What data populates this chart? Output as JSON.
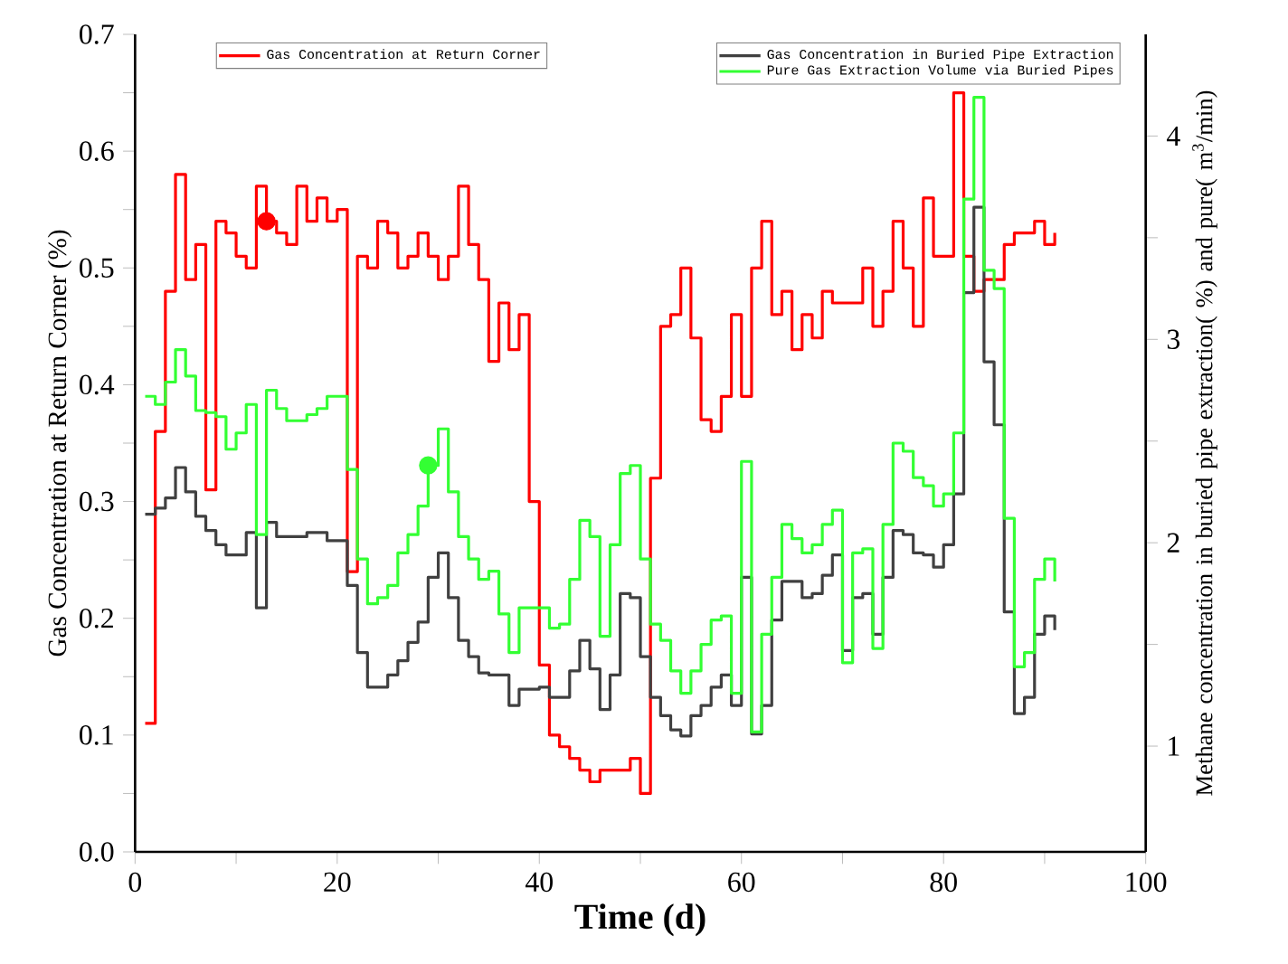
{
  "chart_data": {
    "type": "step",
    "xlabel": "Time (d)",
    "ylabel": "Gas Concentration at Return Corner (%)",
    "y2label": "Methane concentration in buried pipe extraction( %) and pure( m$^{3}$/min)",
    "x": [
      1,
      2,
      3,
      4,
      5,
      6,
      7,
      8,
      9,
      10,
      11,
      12,
      13,
      14,
      15,
      16,
      17,
      18,
      19,
      20,
      21,
      22,
      23,
      24,
      25,
      26,
      27,
      28,
      29,
      30,
      31,
      32,
      33,
      34,
      35,
      36,
      37,
      38,
      39,
      40,
      41,
      42,
      43,
      44,
      45,
      46,
      47,
      48,
      49,
      50,
      51,
      52,
      53,
      54,
      55,
      56,
      57,
      58,
      59,
      60,
      61,
      62,
      63,
      64,
      65,
      66,
      67,
      68,
      69,
      70,
      71,
      72,
      73,
      74,
      75,
      76,
      77,
      78,
      79,
      80,
      81,
      82,
      83,
      84,
      85,
      86,
      87,
      88,
      89,
      90,
      91
    ],
    "xlim": [
      0,
      100
    ],
    "xticks": [
      0,
      {
        "value": 10,
        "label": null
      },
      20,
      {
        "value": 30,
        "label": null
      },
      40,
      {
        "value": 50,
        "label": null
      },
      60,
      {
        "value": 70,
        "label": null
      },
      80,
      {
        "value": 90,
        "label": null
      },
      100
    ],
    "ylim": [
      0,
      0.7
    ],
    "yticks": [
      {
        "value": 0,
        "label": "0.0"
      },
      {
        "value": 0.05,
        "label": null
      },
      {
        "value": 0.1,
        "label": "0.1"
      },
      {
        "value": 0.15,
        "label": null
      },
      {
        "value": 0.2,
        "label": "0.2"
      },
      {
        "value": 0.25,
        "label": null
      },
      {
        "value": 0.3,
        "label": "0.3"
      },
      {
        "value": 0.35,
        "label": null
      },
      {
        "value": 0.4,
        "label": "0.4"
      },
      {
        "value": 0.45,
        "label": null
      },
      {
        "value": 0.5,
        "label": "0.5"
      },
      {
        "value": 0.55,
        "label": null
      },
      {
        "value": 0.6,
        "label": "0.6"
      },
      {
        "value": 0.65,
        "label": null
      },
      {
        "value": 0.7,
        "label": "0.7"
      }
    ],
    "y2lim": [
      0.48,
      4.5
    ],
    "y2ticks": [
      1,
      {
        "value": 1.5,
        "label": null
      },
      2,
      {
        "value": 2.5,
        "label": null
      },
      3,
      {
        "value": 3.5,
        "label": null
      },
      4
    ],
    "legend": "top",
    "series": [
      {
        "name": "Gas Concentration at Return Corner",
        "color": "#ff0000",
        "values": [
          0.11,
          0.36,
          0.48,
          0.58,
          0.49,
          0.52,
          0.31,
          0.54,
          0.53,
          0.51,
          0.5,
          0.57,
          0.54,
          0.53,
          0.52,
          0.57,
          0.54,
          0.56,
          0.54,
          0.55,
          0.24,
          0.51,
          0.5,
          0.54,
          0.53,
          0.5,
          0.51,
          0.53,
          0.51,
          0.49,
          0.51,
          0.57,
          0.52,
          0.49,
          0.42,
          0.47,
          0.43,
          0.46,
          0.3,
          0.16,
          0.1,
          0.09,
          0.08,
          0.07,
          0.06,
          0.07,
          0.07,
          0.07,
          0.08,
          0.05,
          0.32,
          0.45,
          0.46,
          0.5,
          0.44,
          0.37,
          0.36,
          0.39,
          0.46,
          0.39,
          0.5,
          0.54,
          0.46,
          0.48,
          0.43,
          0.46,
          0.44,
          0.48,
          0.47,
          0.47,
          0.47,
          0.5,
          0.45,
          0.48,
          0.54,
          0.5,
          0.45,
          0.56,
          0.51,
          0.51,
          0.65,
          0.51,
          0.48,
          0.49,
          0.49,
          0.52,
          0.53,
          0.53,
          0.54,
          0.52,
          0.53
        ]
      },
      {
        "name": "Gas Concentration in Buried Pipe Extraction",
        "color": "#404040",
        "axis": "y2",
        "values": [
          2.14,
          2.17,
          2.22,
          2.37,
          2.25,
          2.13,
          2.06,
          1.99,
          1.94,
          1.94,
          2.05,
          1.68,
          2.1,
          2.03,
          2.03,
          2.03,
          2.05,
          2.05,
          2.01,
          2.01,
          1.79,
          1.46,
          1.29,
          1.29,
          1.35,
          1.42,
          1.51,
          1.61,
          1.83,
          1.95,
          1.73,
          1.52,
          1.44,
          1.36,
          1.35,
          1.35,
          1.2,
          1.28,
          1.28,
          1.29,
          1.24,
          1.24,
          1.37,
          1.52,
          1.38,
          1.18,
          1.35,
          1.75,
          1.73,
          1.44,
          1.24,
          1.15,
          1.08,
          1.05,
          1.15,
          1.2,
          1.29,
          1.35,
          1.2,
          1.83,
          1.06,
          1.2,
          1.62,
          1.81,
          1.81,
          1.73,
          1.75,
          1.84,
          1.94,
          1.47,
          1.73,
          1.75,
          1.55,
          1.83,
          2.06,
          2.04,
          1.95,
          1.94,
          1.88,
          1.99,
          2.24,
          3.23,
          3.65,
          2.89,
          2.58,
          1.66,
          1.16,
          1.24,
          1.55,
          1.64,
          1.57
        ]
      },
      {
        "name": "Pure Gas Extraction Volume via Buried Pipes",
        "color": "#33ff33",
        "axis": "y2",
        "values": [
          2.72,
          2.68,
          2.79,
          2.95,
          2.82,
          2.65,
          2.64,
          2.62,
          2.46,
          2.54,
          2.68,
          2.04,
          2.75,
          2.66,
          2.6,
          2.6,
          2.63,
          2.66,
          2.72,
          2.72,
          2.36,
          1.92,
          1.7,
          1.73,
          1.79,
          1.95,
          2.04,
          2.18,
          2.38,
          2.56,
          2.25,
          2.03,
          1.92,
          1.82,
          1.86,
          1.65,
          1.46,
          1.68,
          1.68,
          1.68,
          1.58,
          1.6,
          1.82,
          2.11,
          2.03,
          1.54,
          1.99,
          2.34,
          2.38,
          1.92,
          1.6,
          1.52,
          1.37,
          1.26,
          1.37,
          1.5,
          1.62,
          1.64,
          1.26,
          2.4,
          1.07,
          1.55,
          1.83,
          2.09,
          2.02,
          1.95,
          1.99,
          2.09,
          2.16,
          1.41,
          1.95,
          1.97,
          1.48,
          2.09,
          2.49,
          2.45,
          2.32,
          2.28,
          2.18,
          2.24,
          2.54,
          3.69,
          4.19,
          3.34,
          3.25,
          2.12,
          1.39,
          1.46,
          1.82,
          1.92,
          1.81
        ]
      },
      {
        "type": "scatter",
        "color": "#ff0000",
        "x": [
          13
        ],
        "values": [
          0.54
        ]
      },
      {
        "type": "scatter",
        "color": "#33ff33",
        "axis": "y2",
        "x": [
          29
        ],
        "values": [
          2.38
        ]
      }
    ]
  }
}
